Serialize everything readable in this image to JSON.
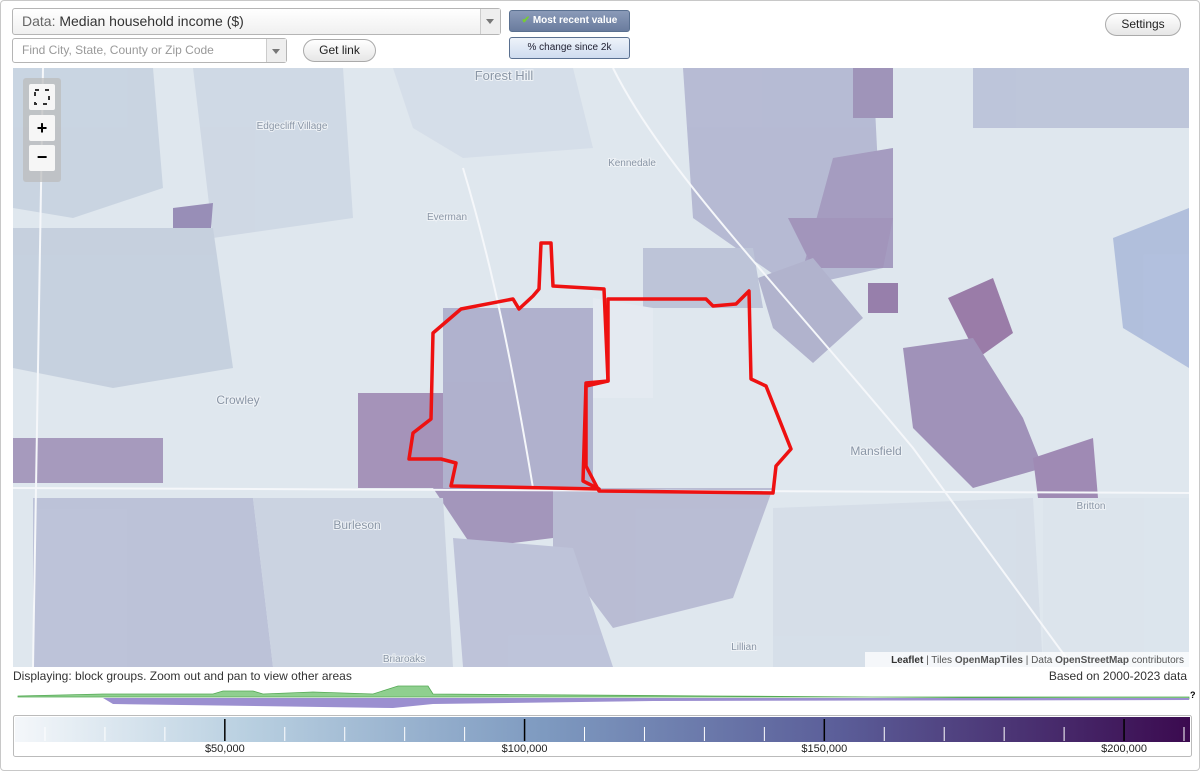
{
  "toolbar": {
    "data_prefix": "Data:",
    "data_selection": "Median household income ($)",
    "search_placeholder": "Find City, State, County or Zip Code",
    "get_link": "Get link",
    "mode_active": "Most recent value",
    "mode_other": "% change since 2k",
    "settings": "Settings"
  },
  "map": {
    "zoom_in": "+",
    "zoom_out": "−",
    "places": [
      "Forest Hill",
      "Edgecliff Village",
      "Kennedale",
      "Everman",
      "Crowley",
      "Mansfield",
      "Burleson",
      "Britton",
      "Briaroaks",
      "Lillian"
    ],
    "attribution": {
      "leaflet": "Leaflet",
      "tiles_prefix": "Tiles",
      "tiles": "OpenMapTiles",
      "data_prefix": "Data",
      "data": "OpenStreetMap",
      "suffix": "contributors"
    }
  },
  "footer": {
    "displaying": "Displaying: block groups. Zoom out and pan to view other areas",
    "based_on": "Based on 2000-2023 data",
    "help": "?"
  },
  "legend": {
    "range": [
      15000,
      211000
    ],
    "ticks": [
      {
        "value": 50000,
        "label": "$50,000"
      },
      {
        "value": 100000,
        "label": "$100,000"
      },
      {
        "value": 150000,
        "label": "$150,000"
      },
      {
        "value": 200000,
        "label": "$200,000"
      }
    ],
    "minor_ticks": [
      20000,
      30000,
      40000,
      60000,
      70000,
      80000,
      90000,
      110000,
      120000,
      130000,
      140000,
      160000,
      170000,
      180000,
      190000,
      210000
    ]
  }
}
